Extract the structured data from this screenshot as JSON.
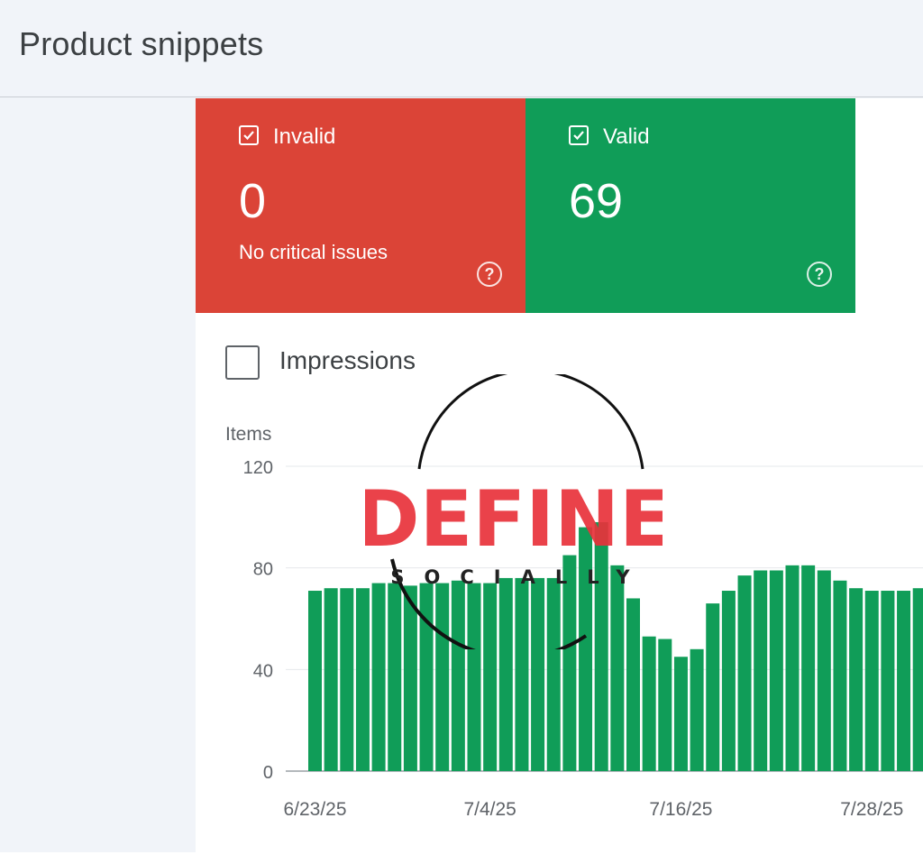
{
  "page": {
    "title": "Product snippets"
  },
  "cards": {
    "invalid": {
      "label": "Invalid",
      "count": "0",
      "subtitle": "No critical issues",
      "color": "#db4437"
    },
    "valid": {
      "label": "Valid",
      "count": "69",
      "color": "#109d58"
    }
  },
  "toggles": {
    "impressions_label": "Impressions",
    "impressions_checked": false
  },
  "icons": {
    "help": "help-circle-icon",
    "check": "checkbox-checked-icon"
  },
  "watermark": {
    "brand": "DEFINE",
    "tagline": "SOCIALLY"
  },
  "chart_data": {
    "type": "bar",
    "ylabel": "Items",
    "ylim": [
      0,
      120
    ],
    "yticks": [
      0,
      40,
      80,
      120
    ],
    "xticks": [
      {
        "label": "6/23/25",
        "index": 0
      },
      {
        "label": "7/4/25",
        "index": 11
      },
      {
        "label": "7/16/25",
        "index": 23
      },
      {
        "label": "7/28/25",
        "index": 35
      }
    ],
    "bar_color": "#109d58",
    "grid": true,
    "values": [
      71,
      72,
      72,
      72,
      74,
      74,
      73,
      74,
      74,
      75,
      74,
      74,
      76,
      76,
      76,
      76,
      85,
      96,
      98,
      81,
      68,
      53,
      52,
      45,
      48,
      66,
      71,
      77,
      79,
      79,
      81,
      81,
      79,
      75,
      72,
      71,
      71,
      71,
      72
    ]
  }
}
